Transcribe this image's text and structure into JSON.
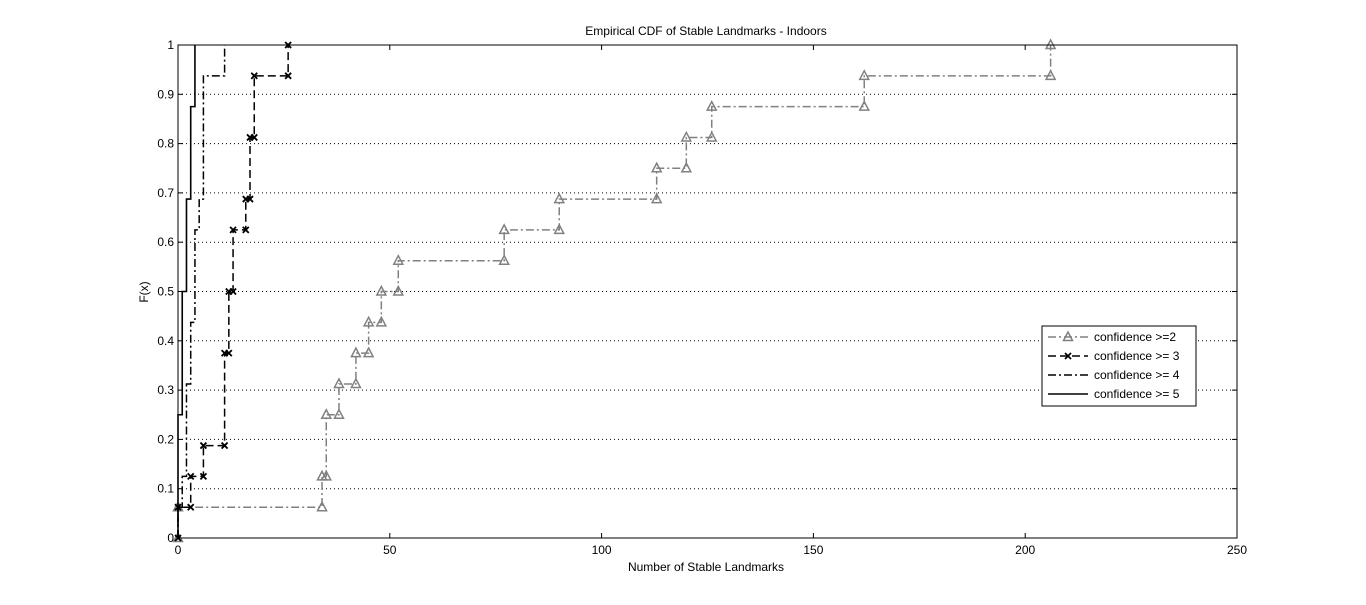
{
  "chart_data": {
    "type": "line",
    "step": true,
    "title": "Empirical CDF of Stable Landmarks - Indoors",
    "xlabel": "Number of Stable Landmarks",
    "ylabel": "F(x)",
    "xlim": [
      0,
      250
    ],
    "ylim": [
      0,
      1
    ],
    "xticks": [
      0,
      50,
      100,
      150,
      200,
      250
    ],
    "yticks": [
      0,
      0.1,
      0.2,
      0.3,
      0.4,
      0.5,
      0.6,
      0.7,
      0.8,
      0.9,
      1
    ],
    "grid": "horizontal-dotted",
    "legend_position": "right",
    "series": [
      {
        "name": "confidence >=2",
        "color": "#808080",
        "line_style": "dash-dot",
        "marker": "triangle",
        "x": [
          0,
          34,
          35,
          38,
          42,
          45,
          48,
          52,
          77,
          90,
          113,
          120,
          126,
          162,
          206
        ],
        "y": [
          0.0625,
          0.125,
          0.25,
          0.3125,
          0.375,
          0.4375,
          0.5,
          0.5625,
          0.625,
          0.6875,
          0.75,
          0.8125,
          0.875,
          0.9375,
          1.0
        ]
      },
      {
        "name": "confidence >= 3",
        "color": "#000000",
        "line_style": "dashed",
        "marker": "x",
        "x": [
          0,
          3,
          6,
          11,
          12,
          13,
          16,
          17,
          18,
          26
        ],
        "y": [
          0.0625,
          0.125,
          0.1875,
          0.375,
          0.5,
          0.625,
          0.6875,
          0.8125,
          0.9375,
          1.0
        ]
      },
      {
        "name": "confidence >= 4",
        "color": "#000000",
        "line_style": "dash-dot",
        "marker": "none",
        "x": [
          0,
          1,
          2,
          3,
          4,
          5,
          6,
          11
        ],
        "y": [
          0.0625,
          0.125,
          0.3125,
          0.4375,
          0.625,
          0.6875,
          0.9375,
          1.0
        ]
      },
      {
        "name": "confidence >= 5",
        "color": "#000000",
        "line_style": "solid",
        "marker": "none",
        "x": [
          0,
          1,
          2,
          3,
          4
        ],
        "y": [
          0.25,
          0.5,
          0.6875,
          0.875,
          1.0
        ]
      }
    ]
  }
}
